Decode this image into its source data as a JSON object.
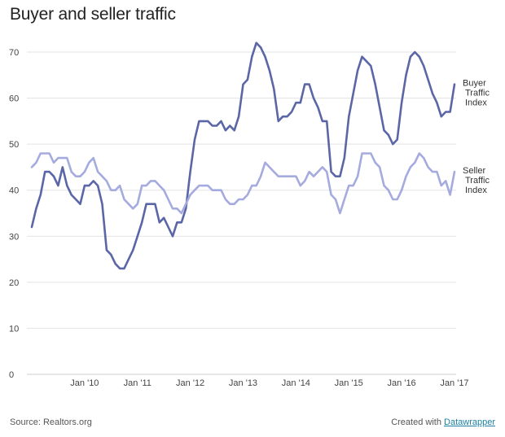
{
  "header": {
    "title": "Buyer and seller traffic"
  },
  "footer": {
    "source": "Source: Realtors.org",
    "credit_prefix": "Created with",
    "credit_link": "Datawrapper"
  },
  "chart_data": {
    "type": "line",
    "title": "Buyer and seller traffic",
    "xlabel": "",
    "ylabel": "",
    "ylim": [
      0,
      70
    ],
    "yticks": [
      0,
      10,
      20,
      30,
      40,
      50,
      60,
      70
    ],
    "xticks": [
      {
        "label": "Jan '10",
        "date": "2010-01"
      },
      {
        "label": "Jan '11",
        "date": "2011-01"
      },
      {
        "label": "Jan '12",
        "date": "2012-01"
      },
      {
        "label": "Jan '13",
        "date": "2013-01"
      },
      {
        "label": "Jan '14",
        "date": "2014-01"
      },
      {
        "label": "Jan '15",
        "date": "2015-01"
      },
      {
        "label": "Jan '16",
        "date": "2016-01"
      },
      {
        "label": "Jan '17",
        "date": "2017-01"
      }
    ],
    "grid": true,
    "legend": "direct labels at right end of lines",
    "x_dates": [
      "2009-01",
      "2009-02",
      "2009-03",
      "2009-04",
      "2009-05",
      "2009-06",
      "2009-07",
      "2009-08",
      "2009-09",
      "2009-10",
      "2009-11",
      "2009-12",
      "2010-01",
      "2010-02",
      "2010-03",
      "2010-04",
      "2010-05",
      "2010-06",
      "2010-07",
      "2010-08",
      "2010-09",
      "2010-10",
      "2010-11",
      "2010-12",
      "2011-01",
      "2011-02",
      "2011-03",
      "2011-04",
      "2011-05",
      "2011-06",
      "2011-07",
      "2011-08",
      "2011-09",
      "2011-10",
      "2011-11",
      "2011-12",
      "2012-01",
      "2012-02",
      "2012-03",
      "2012-04",
      "2012-05",
      "2012-06",
      "2012-07",
      "2012-08",
      "2012-09",
      "2012-10",
      "2012-11",
      "2012-12",
      "2013-01",
      "2013-02",
      "2013-03",
      "2013-04",
      "2013-05",
      "2013-06",
      "2013-07",
      "2013-08",
      "2013-09",
      "2013-10",
      "2013-11",
      "2013-12",
      "2014-01",
      "2014-02",
      "2014-03",
      "2014-04",
      "2014-05",
      "2014-06",
      "2014-07",
      "2014-08",
      "2014-09",
      "2014-10",
      "2014-11",
      "2014-12",
      "2015-01",
      "2015-02",
      "2015-03",
      "2015-04",
      "2015-05",
      "2015-06",
      "2015-07",
      "2015-08",
      "2015-09",
      "2015-10",
      "2015-11",
      "2015-12",
      "2016-01",
      "2016-02",
      "2016-03",
      "2016-04",
      "2016-05",
      "2016-06",
      "2016-07",
      "2016-08",
      "2016-09",
      "2016-10",
      "2016-11",
      "2016-12",
      "2017-01"
    ],
    "series": [
      {
        "name": "Buyer Traffic Index",
        "label_lines": [
          "Buyer",
          "Traffic",
          "Index"
        ],
        "color": "#5b66a6",
        "values": [
          32,
          36,
          39,
          44,
          44,
          43,
          41,
          45,
          41,
          39,
          38,
          37,
          41,
          41,
          42,
          41,
          37,
          27,
          26,
          24,
          23,
          23,
          25,
          27,
          30,
          33,
          37,
          37,
          37,
          33,
          34,
          32,
          30,
          33,
          33,
          36,
          44,
          51,
          55,
          55,
          55,
          54,
          54,
          55,
          53,
          54,
          53,
          56,
          63,
          64,
          69,
          72,
          71,
          69,
          66,
          62,
          55,
          56,
          56,
          57,
          59,
          59,
          63,
          63,
          60,
          58,
          55,
          55,
          44,
          43,
          43,
          47,
          56,
          61,
          66,
          69,
          68,
          67,
          63,
          58,
          53,
          52,
          50,
          51,
          59,
          65,
          69,
          70,
          69,
          67,
          64,
          61,
          59,
          56,
          57,
          57,
          63
        ]
      },
      {
        "name": "Seller Traffic Index",
        "label_lines": [
          "Seller",
          "Traffic",
          "Index"
        ],
        "color": "#a5aadf",
        "values": [
          45,
          46,
          48,
          48,
          48,
          46,
          47,
          47,
          47,
          44,
          43,
          43,
          44,
          46,
          47,
          44,
          43,
          42,
          40,
          40,
          41,
          38,
          37,
          36,
          37,
          41,
          41,
          42,
          42,
          41,
          40,
          38,
          36,
          36,
          35,
          37,
          39,
          40,
          41,
          41,
          41,
          40,
          40,
          40,
          38,
          37,
          37,
          38,
          38,
          39,
          41,
          41,
          43,
          46,
          45,
          44,
          43,
          43,
          43,
          43,
          43,
          41,
          42,
          44,
          43,
          44,
          45,
          44,
          39,
          38,
          35,
          38,
          41,
          41,
          43,
          48,
          48,
          48,
          46,
          45,
          41,
          40,
          38,
          38,
          40,
          43,
          45,
          46,
          48,
          47,
          45,
          44,
          44,
          41,
          42,
          39,
          44
        ]
      }
    ]
  }
}
